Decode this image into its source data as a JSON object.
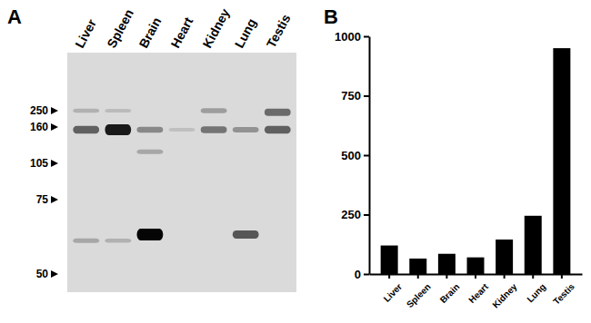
{
  "panel_labels": [
    "A",
    "B"
  ],
  "blot": {
    "markers": [
      250,
      160,
      105,
      75,
      50
    ],
    "lanes": [
      {
        "label": "Liver",
        "bands": [
          {
            "kda": 250,
            "intensity": 0.15
          },
          {
            "kda": 155,
            "intensity": 0.55
          },
          {
            "kda": 60,
            "intensity": 0.2
          }
        ]
      },
      {
        "label": "Spleen",
        "bands": [
          {
            "kda": 250,
            "intensity": 0.1
          },
          {
            "kda": 155,
            "intensity": 0.9
          },
          {
            "kda": 60,
            "intensity": 0.15
          }
        ]
      },
      {
        "label": "Brain",
        "bands": [
          {
            "kda": 155,
            "intensity": 0.35
          },
          {
            "kda": 120,
            "intensity": 0.2
          },
          {
            "kda": 62,
            "intensity": 1.0
          }
        ]
      },
      {
        "label": "Heart",
        "bands": [
          {
            "kda": 155,
            "intensity": 0.08
          }
        ]
      },
      {
        "label": "Kidney",
        "bands": [
          {
            "kda": 250,
            "intensity": 0.25
          },
          {
            "kda": 155,
            "intensity": 0.45
          }
        ]
      },
      {
        "label": "Lung",
        "bands": [
          {
            "kda": 155,
            "intensity": 0.3
          },
          {
            "kda": 62,
            "intensity": 0.6
          }
        ]
      },
      {
        "label": "Testis",
        "bands": [
          {
            "kda": 240,
            "intensity": 0.5
          },
          {
            "kda": 155,
            "intensity": 0.55
          }
        ]
      }
    ]
  },
  "chart_data": {
    "type": "bar",
    "categories": [
      "Liver",
      "Spleen",
      "Brain",
      "Heart",
      "Kidney",
      "Lung",
      "Testis"
    ],
    "values": [
      120,
      65,
      85,
      70,
      145,
      245,
      950
    ],
    "color": "#000000",
    "ylim": [
      0,
      1000
    ],
    "yticks": [
      0,
      250,
      500,
      750,
      1000
    ],
    "grid": false
  }
}
